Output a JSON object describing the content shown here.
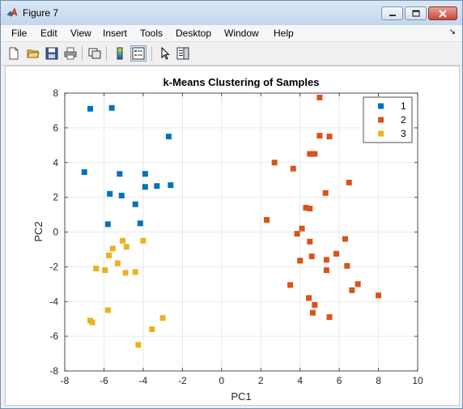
{
  "window": {
    "title": "Figure 7"
  },
  "menu": [
    "File",
    "Edit",
    "View",
    "Insert",
    "Tools",
    "Desktop",
    "Window",
    "Help"
  ],
  "toolbar": {
    "icons": [
      "new-figure-icon",
      "open-file-icon",
      "save-icon",
      "print-icon",
      "link-icon",
      "colorbar-icon",
      "legend-icon",
      "pointer-icon",
      "property-editor-icon"
    ]
  },
  "chart_data": {
    "type": "scatter",
    "title": "k-Means Clustering of Samples",
    "xlabel": "PC1",
    "ylabel": "PC2",
    "xlim": [
      -8,
      10
    ],
    "ylim": [
      -8,
      8
    ],
    "xticks": [
      -8,
      -6,
      -4,
      -2,
      0,
      2,
      4,
      6,
      8,
      10
    ],
    "yticks": [
      -8,
      -6,
      -4,
      -2,
      0,
      2,
      4,
      6,
      8
    ],
    "grid": true,
    "legend_position": "top-right",
    "series": [
      {
        "name": "1",
        "color": "#0072BD",
        "points": [
          [
            -6.7,
            7.1
          ],
          [
            -5.6,
            7.15
          ],
          [
            -2.7,
            5.5
          ],
          [
            -7.0,
            3.45
          ],
          [
            -5.2,
            3.35
          ],
          [
            -3.9,
            3.35
          ],
          [
            -3.9,
            2.6
          ],
          [
            -3.3,
            2.65
          ],
          [
            -2.6,
            2.7
          ],
          [
            -5.7,
            2.2
          ],
          [
            -5.1,
            2.1
          ],
          [
            -4.4,
            1.6
          ],
          [
            -5.8,
            0.45
          ],
          [
            -4.15,
            0.5
          ]
        ]
      },
      {
        "name": "2",
        "color": "#D95319",
        "points": [
          [
            5.0,
            7.75
          ],
          [
            5.0,
            5.55
          ],
          [
            5.5,
            5.5
          ],
          [
            4.5,
            4.5
          ],
          [
            4.75,
            4.5
          ],
          [
            2.7,
            4.0
          ],
          [
            3.65,
            3.65
          ],
          [
            6.5,
            2.85
          ],
          [
            5.3,
            2.25
          ],
          [
            4.3,
            1.4
          ],
          [
            4.5,
            1.35
          ],
          [
            2.3,
            0.7
          ],
          [
            4.1,
            0.2
          ],
          [
            3.85,
            -0.1
          ],
          [
            6.3,
            -0.4
          ],
          [
            4.5,
            -0.55
          ],
          [
            5.85,
            -1.25
          ],
          [
            4.6,
            -1.4
          ],
          [
            5.35,
            -1.6
          ],
          [
            4.0,
            -1.65
          ],
          [
            6.4,
            -1.95
          ],
          [
            5.35,
            -2.2
          ],
          [
            3.5,
            -3.05
          ],
          [
            6.95,
            -3.0
          ],
          [
            6.65,
            -3.35
          ],
          [
            8.0,
            -3.65
          ],
          [
            4.45,
            -3.8
          ],
          [
            4.75,
            -4.2
          ],
          [
            4.65,
            -4.65
          ],
          [
            5.5,
            -4.9
          ]
        ]
      },
      {
        "name": "3",
        "color": "#EDB120",
        "points": [
          [
            -5.05,
            -0.5
          ],
          [
            -4.0,
            -0.5
          ],
          [
            -5.55,
            -0.95
          ],
          [
            -4.85,
            -0.85
          ],
          [
            -5.75,
            -1.35
          ],
          [
            -5.3,
            -1.8
          ],
          [
            -6.4,
            -2.1
          ],
          [
            -5.95,
            -2.2
          ],
          [
            -4.4,
            -2.3
          ],
          [
            -4.9,
            -2.35
          ],
          [
            -6.7,
            -5.1
          ],
          [
            -6.6,
            -5.2
          ],
          [
            -5.8,
            -4.5
          ],
          [
            -3.55,
            -5.6
          ],
          [
            -3.0,
            -4.95
          ],
          [
            -4.25,
            -6.5
          ]
        ]
      }
    ]
  }
}
